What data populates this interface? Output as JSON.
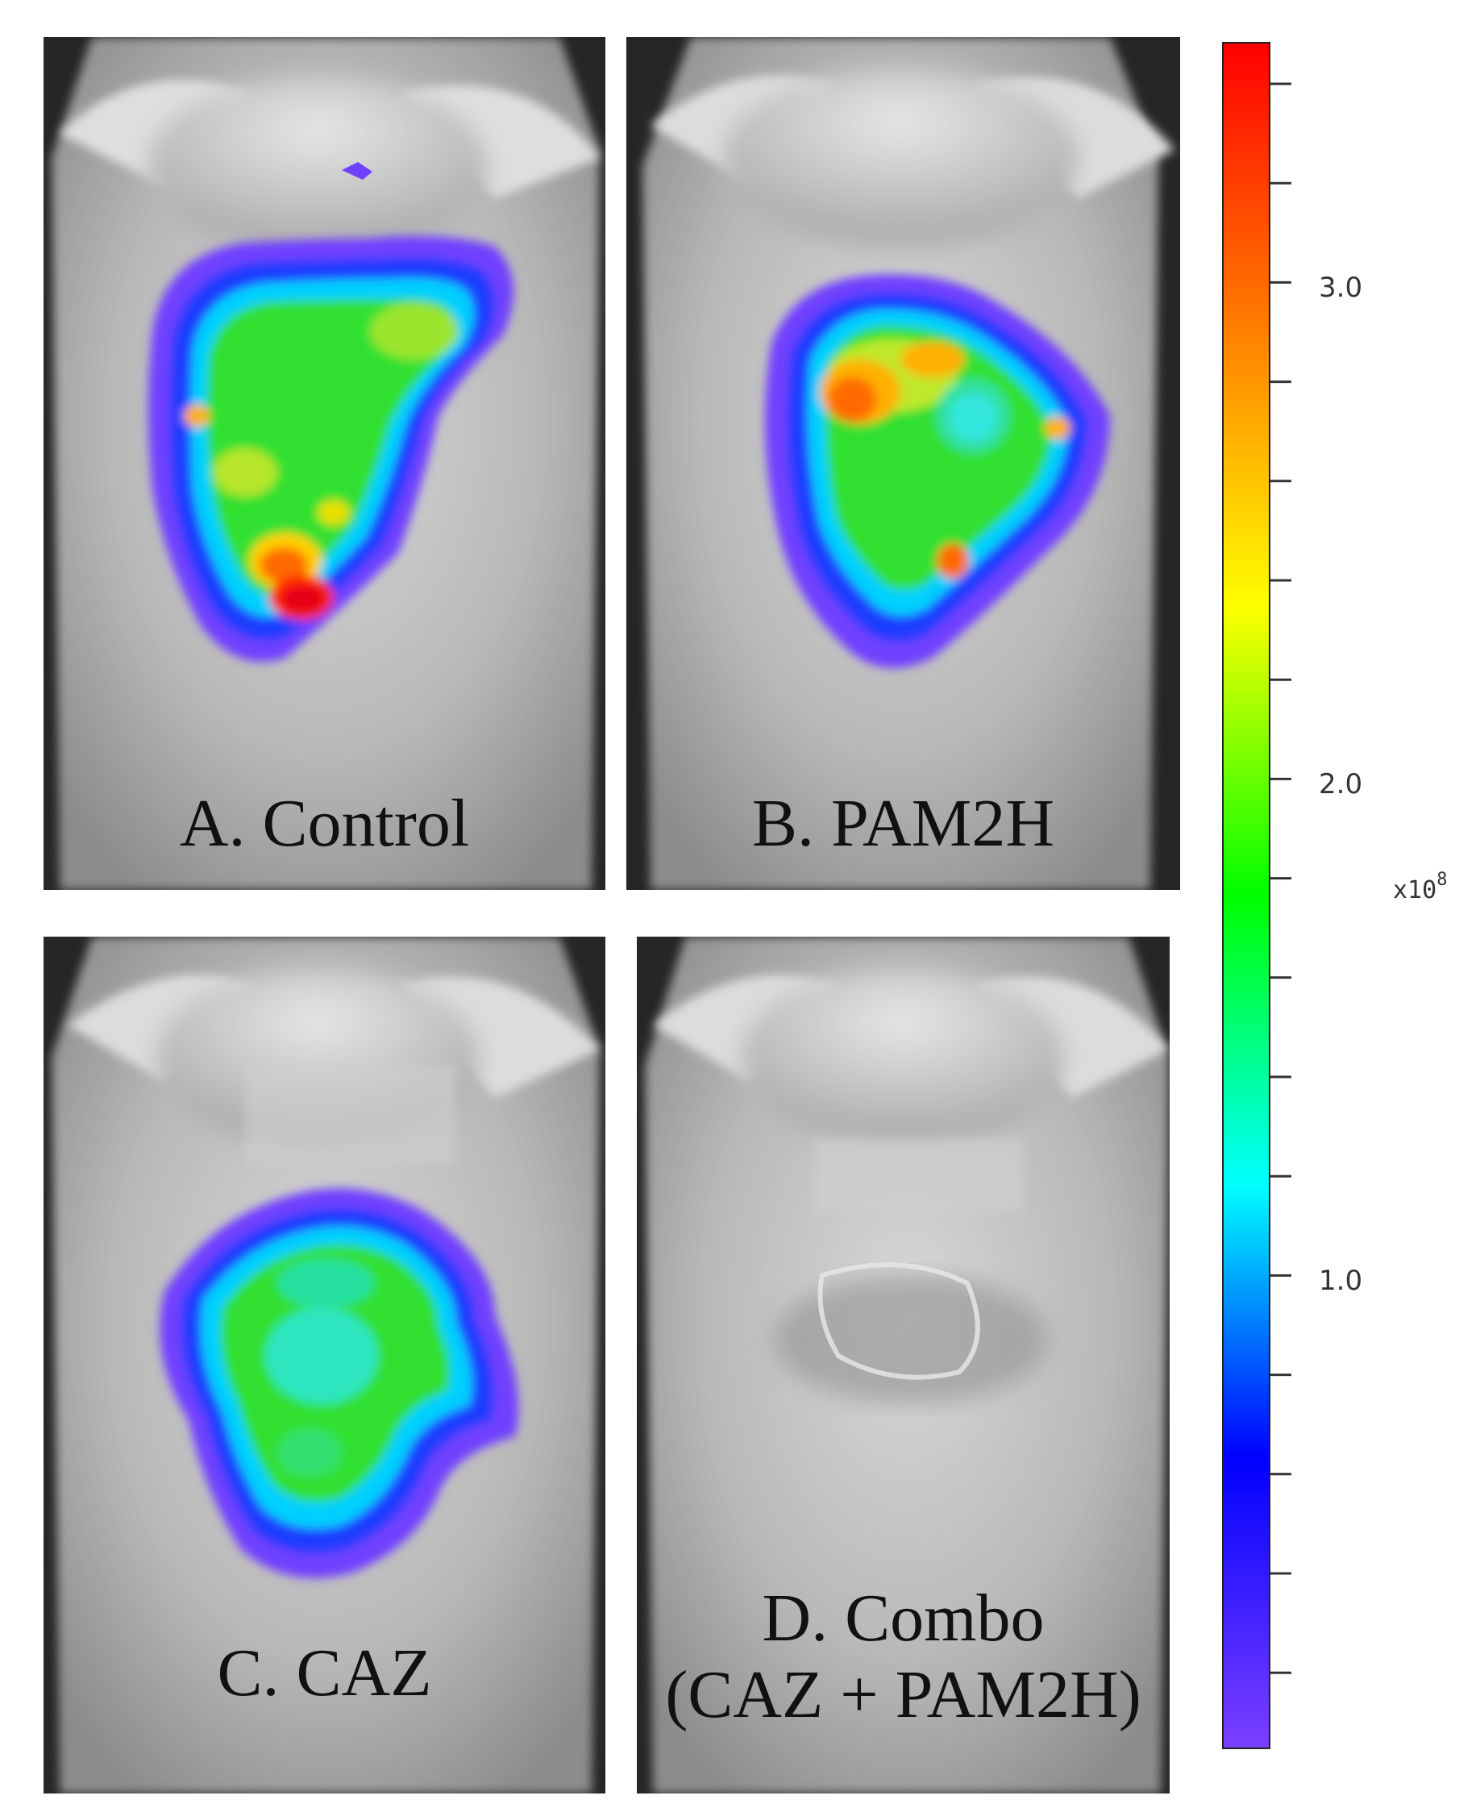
{
  "panels": {
    "a": {
      "label": "A. Control"
    },
    "b": {
      "label": "B. PAM2H"
    },
    "c": {
      "label": "C. CAZ"
    },
    "d": {
      "label_line1": "D. Combo",
      "label_line2": "(CAZ + PAM2H)"
    }
  },
  "scale": {
    "tick_labels": [
      "3.0",
      "2.0",
      "1.0"
    ],
    "unit_base": "x10",
    "unit_exp": "8",
    "colors": [
      "#ff0000",
      "#ff8000",
      "#ffff00",
      "#00ff00",
      "#00ffff",
      "#0000ff",
      "#7b3fff"
    ]
  }
}
